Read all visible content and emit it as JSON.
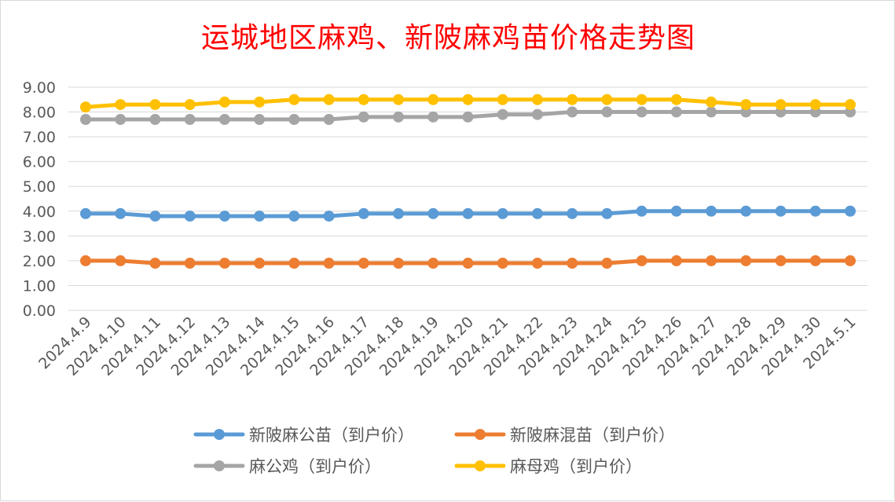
{
  "chart_data": {
    "type": "line",
    "title": "运城地区麻鸡、新陂麻鸡苗价格走势图",
    "xlabel": "",
    "ylabel": "",
    "ylim": [
      0,
      9
    ],
    "yticks": [
      "0.00",
      "1.00",
      "2.00",
      "3.00",
      "4.00",
      "5.00",
      "6.00",
      "7.00",
      "8.00",
      "9.00"
    ],
    "grid": true,
    "legend_position": "bottom",
    "categories": [
      "2024.4.9",
      "2024.4.10",
      "2024.4.11",
      "2024.4.12",
      "2024.4.13",
      "2024.4.14",
      "2024.4.15",
      "2024.4.16",
      "2024.4.17",
      "2024.4.18",
      "2024.4.19",
      "2024.4.20",
      "2024.4.21",
      "2024.4.22",
      "2024.4.23",
      "2024.4.24",
      "2024.4.25",
      "2024.4.26",
      "2024.4.27",
      "2024.4.28",
      "2024.4.29",
      "2024.4.30",
      "2024.5.1"
    ],
    "series": [
      {
        "name": "新陂麻公苗（到户价）",
        "color": "#5b9bd5",
        "values": [
          3.9,
          3.9,
          3.8,
          3.8,
          3.8,
          3.8,
          3.8,
          3.8,
          3.9,
          3.9,
          3.9,
          3.9,
          3.9,
          3.9,
          3.9,
          3.9,
          4.0,
          4.0,
          4.0,
          4.0,
          4.0,
          4.0,
          4.0
        ]
      },
      {
        "name": "新陂麻混苗（到户价）",
        "color": "#ed7d31",
        "values": [
          2.0,
          2.0,
          1.9,
          1.9,
          1.9,
          1.9,
          1.9,
          1.9,
          1.9,
          1.9,
          1.9,
          1.9,
          1.9,
          1.9,
          1.9,
          1.9,
          2.0,
          2.0,
          2.0,
          2.0,
          2.0,
          2.0,
          2.0
        ]
      },
      {
        "name": "麻公鸡（到户价）",
        "color": "#a5a5a5",
        "values": [
          7.7,
          7.7,
          7.7,
          7.7,
          7.7,
          7.7,
          7.7,
          7.7,
          7.8,
          7.8,
          7.8,
          7.8,
          7.9,
          7.9,
          8.0,
          8.0,
          8.0,
          8.0,
          8.0,
          8.0,
          8.0,
          8.0,
          8.0
        ]
      },
      {
        "name": "麻母鸡（到户价）",
        "color": "#ffc000",
        "values": [
          8.2,
          8.3,
          8.3,
          8.3,
          8.4,
          8.4,
          8.5,
          8.5,
          8.5,
          8.5,
          8.5,
          8.5,
          8.5,
          8.5,
          8.5,
          8.5,
          8.5,
          8.5,
          8.4,
          8.3,
          8.3,
          8.3,
          8.3
        ]
      }
    ]
  }
}
